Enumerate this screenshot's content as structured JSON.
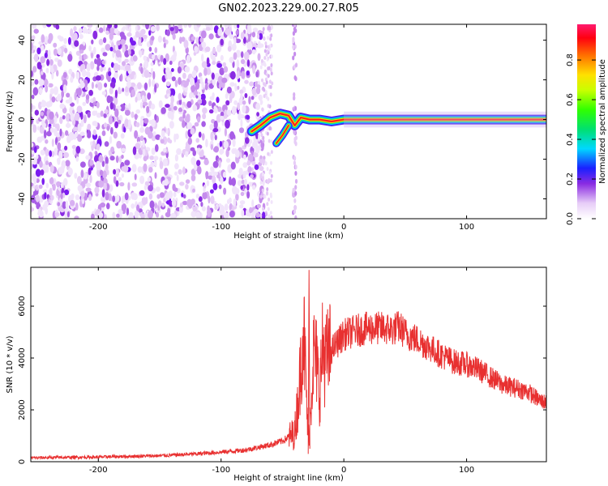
{
  "title": "GN02.2023.229.00.27.R05",
  "chart_data": [
    {
      "type": "heatmap",
      "xlabel": "Height of straight line (km)",
      "ylabel": "Frequency (Hz)",
      "xlim": [
        -255,
        165
      ],
      "ylim": [
        -50,
        48
      ],
      "xticks": [
        -200,
        -100,
        0,
        100
      ],
      "xtick_labels": [
        "-200",
        "-100",
        "0",
        "100"
      ],
      "yticks": [
        -40,
        -20,
        0,
        20,
        40
      ],
      "ytick_labels": [
        "-40",
        "-20",
        "0",
        "20",
        "40"
      ],
      "colorbar": {
        "label": "Normalized spectral amplitude",
        "range": [
          0,
          0.98
        ],
        "ticks": [
          0.0,
          0.2,
          0.4,
          0.6,
          0.8
        ],
        "tick_labels": [
          "0.0",
          "0.2",
          "0.4",
          "0.6",
          "0.8"
        ]
      },
      "noise_region": {
        "x_from": -255,
        "x_to": -65,
        "note_amplitude": 0.1
      },
      "signal_track": [
        {
          "x": -75,
          "y": -6
        },
        {
          "x": -68,
          "y": -3
        },
        {
          "x": -60,
          "y": 1
        },
        {
          "x": -52,
          "y": 3
        },
        {
          "x": -45,
          "y": 2
        },
        {
          "x": -40,
          "y": -3
        },
        {
          "x": -35,
          "y": 1
        },
        {
          "x": -28,
          "y": 0
        },
        {
          "x": -20,
          "y": 0
        },
        {
          "x": -10,
          "y": -1
        },
        {
          "x": 0,
          "y": 0
        },
        {
          "x": 40,
          "y": 0
        },
        {
          "x": 80,
          "y": 0
        },
        {
          "x": 120,
          "y": 0
        },
        {
          "x": 165,
          "y": 0
        }
      ],
      "signal_branch": [
        {
          "x": -55,
          "y": -12
        },
        {
          "x": -50,
          "y": -8
        },
        {
          "x": -45,
          "y": -3
        }
      ]
    },
    {
      "type": "line",
      "xlabel": "Height of straight line (km)",
      "ylabel": "SNR (10 * v/v)",
      "xlim": [
        -255,
        165
      ],
      "ylim": [
        0,
        7500
      ],
      "xticks": [
        -200,
        -100,
        0,
        100
      ],
      "xtick_labels": [
        "-200",
        "-100",
        "0",
        "100"
      ],
      "yticks": [
        0,
        2000,
        4000,
        6000
      ],
      "ytick_labels": [
        "0",
        "2000",
        "4000",
        "6000"
      ],
      "color": "#e83030",
      "series": [
        {
          "x": [
            -255,
            -200,
            -150,
            -120,
            -100,
            -80,
            -60,
            -50,
            -40,
            -36,
            -33,
            -31,
            -29,
            -27,
            -25,
            -22,
            -20,
            -17,
            -15,
            -10,
            -5,
            0,
            10,
            20,
            30,
            40,
            45,
            50,
            60,
            70,
            80,
            90,
            100,
            110,
            120,
            130,
            140,
            150,
            160,
            165
          ],
          "y": [
            150,
            180,
            230,
            300,
            370,
            450,
            650,
            800,
            1100,
            3000,
            5500,
            3200,
            800,
            2000,
            4200,
            3800,
            2600,
            4500,
            3900,
            4300,
            4600,
            4900,
            5050,
            5150,
            5150,
            5100,
            5200,
            4950,
            4700,
            4400,
            4100,
            3850,
            3750,
            3550,
            3250,
            2950,
            2850,
            2700,
            2350,
            2300
          ]
        }
      ]
    }
  ]
}
